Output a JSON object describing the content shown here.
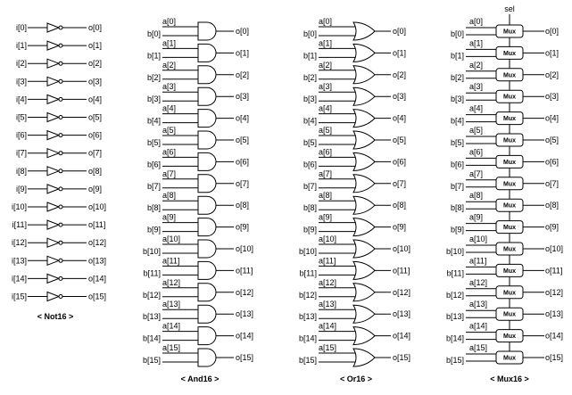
{
  "not16": {
    "caption": "< Not16 >",
    "inputs": [
      "i[0]",
      "i[1]",
      "i[2]",
      "i[3]",
      "i[4]",
      "i[5]",
      "i[6]",
      "i[7]",
      "i[8]",
      "i[9]",
      "i[10]",
      "i[11]",
      "i[12]",
      "i[13]",
      "i[14]",
      "i[15]"
    ],
    "outputs": [
      "o[0]",
      "o[1]",
      "o[2]",
      "o[3]",
      "o[4]",
      "o[5]",
      "o[6]",
      "o[7]",
      "o[8]",
      "o[9]",
      "o[10]",
      "o[11]",
      "o[12]",
      "o[13]",
      "o[14]",
      "o[15]"
    ]
  },
  "and16": {
    "caption": "< And16 >",
    "a_inputs": [
      "a[0]",
      "a[1]",
      "a[2]",
      "a[3]",
      "a[4]",
      "a[5]",
      "a[6]",
      "a[7]",
      "a[8]",
      "a[9]",
      "a[10]",
      "a[11]",
      "a[12]",
      "a[13]",
      "a[14]",
      "a[15]"
    ],
    "b_inputs": [
      "b[0]",
      "b[1]",
      "b[2]",
      "b[3]",
      "b[4]",
      "b[5]",
      "b[6]",
      "b[7]",
      "b[8]",
      "b[9]",
      "b[10]",
      "b[11]",
      "b[12]",
      "b[13]",
      "b[14]",
      "b[15]"
    ],
    "outputs": [
      "o[0]",
      "o[1]",
      "o[2]",
      "o[3]",
      "o[4]",
      "o[5]",
      "o[6]",
      "o[7]",
      "o[8]",
      "o[9]",
      "o[10]",
      "o[11]",
      "o[12]",
      "o[13]",
      "o[14]",
      "o[15]"
    ]
  },
  "or16": {
    "caption": "< Or16 >",
    "a_inputs": [
      "a[0]",
      "a[1]",
      "a[2]",
      "a[3]",
      "a[4]",
      "a[5]",
      "a[6]",
      "a[7]",
      "a[8]",
      "a[9]",
      "a[10]",
      "a[11]",
      "a[12]",
      "a[13]",
      "a[14]",
      "a[15]"
    ],
    "b_inputs": [
      "b[0]",
      "b[1]",
      "b[2]",
      "b[3]",
      "b[4]",
      "b[5]",
      "b[6]",
      "b[7]",
      "b[8]",
      "b[9]",
      "b[10]",
      "b[11]",
      "b[12]",
      "b[13]",
      "b[14]",
      "b[15]"
    ],
    "outputs": [
      "o[0]",
      "o[1]",
      "o[2]",
      "o[3]",
      "o[4]",
      "o[5]",
      "o[6]",
      "o[7]",
      "o[8]",
      "o[9]",
      "o[10]",
      "o[11]",
      "o[12]",
      "o[13]",
      "o[14]",
      "o[15]"
    ]
  },
  "mux16": {
    "caption": "< Mux16 >",
    "select_label": "sel",
    "gate_label": "Mux",
    "a_inputs": [
      "a[0]",
      "a[1]",
      "a[2]",
      "a[3]",
      "a[4]",
      "a[5]",
      "a[6]",
      "a[7]",
      "a[8]",
      "a[9]",
      "a[10]",
      "a[11]",
      "a[12]",
      "a[13]",
      "a[14]",
      "a[15]"
    ],
    "b_inputs": [
      "b[0]",
      "b[1]",
      "b[2]",
      "b[3]",
      "b[4]",
      "b[5]",
      "b[6]",
      "b[7]",
      "b[8]",
      "b[9]",
      "b[10]",
      "b[11]",
      "b[12]",
      "b[13]",
      "b[14]",
      "b[15]"
    ],
    "outputs": [
      "o[0]",
      "o[1]",
      "o[2]",
      "o[3]",
      "o[4]",
      "o[5]",
      "o[6]",
      "o[7]",
      "o[8]",
      "o[9]",
      "o[10]",
      "o[11]",
      "o[12]",
      "o[13]",
      "o[14]",
      "o[15]"
    ]
  }
}
